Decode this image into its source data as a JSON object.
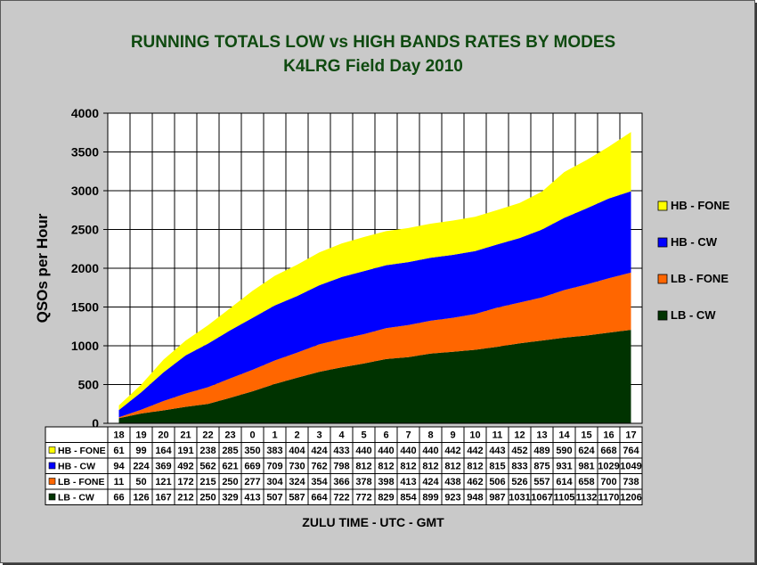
{
  "chart_data": {
    "type": "area",
    "stacked": true,
    "title": "RUNNING TOTALS  LOW vs HIGH BANDS RATES BY MODES",
    "subtitle": "K4LRG Field Day 2010",
    "ylabel": "QSOs per Hour",
    "xlabel": "ZULU TIME  -  UTC  -  GMT",
    "ylim": [
      0,
      4000
    ],
    "yticks": [
      0,
      500,
      1000,
      1500,
      2000,
      2500,
      3000,
      3500,
      4000
    ],
    "categories": [
      "18",
      "19",
      "20",
      "21",
      "22",
      "23",
      "0",
      "1",
      "2",
      "3",
      "4",
      "5",
      "6",
      "7",
      "8",
      "9",
      "10",
      "11",
      "12",
      "13",
      "14",
      "15",
      "16",
      "17"
    ],
    "grid": true,
    "legend_position": "right",
    "series": [
      {
        "name": "HB - FONE",
        "color": "#ffff00",
        "values": [
          61,
          99,
          164,
          191,
          238,
          285,
          350,
          383,
          404,
          424,
          433,
          440,
          440,
          440,
          440,
          442,
          442,
          443,
          452,
          489,
          590,
          624,
          668,
          764
        ]
      },
      {
        "name": "HB - CW",
        "color": "#0000ff",
        "values": [
          94,
          224,
          369,
          492,
          562,
          621,
          669,
          709,
          730,
          762,
          798,
          812,
          812,
          812,
          812,
          812,
          812,
          815,
          833,
          875,
          931,
          981,
          1029,
          1049
        ]
      },
      {
        "name": "LB - FONE",
        "color": "#ff6600",
        "values": [
          11,
          50,
          121,
          172,
          215,
          250,
          277,
          304,
          324,
          354,
          366,
          378,
          398,
          413,
          424,
          438,
          462,
          506,
          526,
          557,
          614,
          658,
          700,
          738
        ]
      },
      {
        "name": "LB - CW",
        "color": "#003300",
        "values": [
          66,
          126,
          167,
          212,
          250,
          329,
          413,
          507,
          587,
          664,
          722,
          772,
          829,
          854,
          899,
          923,
          948,
          987,
          1031,
          1067,
          1105,
          1132,
          1170,
          1206
        ]
      }
    ]
  }
}
